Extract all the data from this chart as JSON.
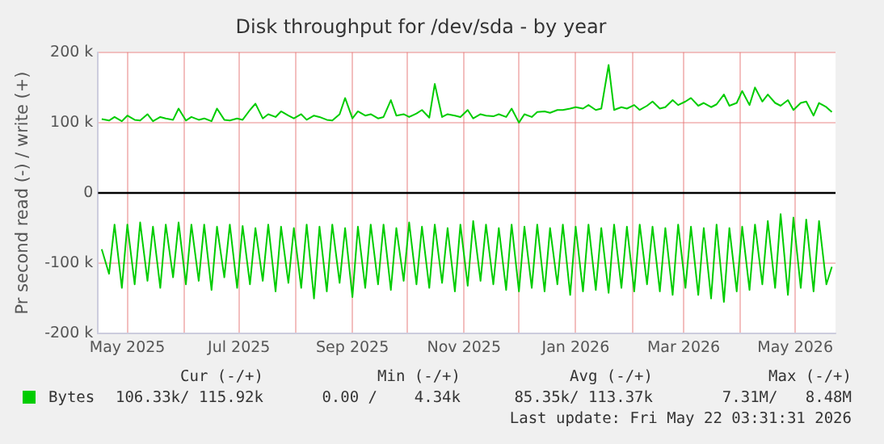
{
  "chart_data": {
    "type": "line",
    "title": "Disk throughput for /dev/sda - by year",
    "ylabel": "Pr second read (-) / write (+)",
    "x": [
      "2025-04-17",
      "2025-04-21",
      "2025-04-24",
      "2025-04-28",
      "2025-05-01",
      "2025-05-05",
      "2025-05-08",
      "2025-05-12",
      "2025-05-15",
      "2025-05-19",
      "2025-05-22",
      "2025-05-26",
      "2025-05-29",
      "2025-06-02",
      "2025-06-05",
      "2025-06-09",
      "2025-06-12",
      "2025-06-16",
      "2025-06-19",
      "2025-06-23",
      "2025-06-26",
      "2025-06-30",
      "2025-07-03",
      "2025-07-07",
      "2025-07-10",
      "2025-07-14",
      "2025-07-17",
      "2025-07-21",
      "2025-07-24",
      "2025-07-28",
      "2025-07-31",
      "2025-08-04",
      "2025-08-07",
      "2025-08-11",
      "2025-08-14",
      "2025-08-18",
      "2025-08-21",
      "2025-08-25",
      "2025-08-28",
      "2025-09-01",
      "2025-09-04",
      "2025-09-08",
      "2025-09-11",
      "2025-09-15",
      "2025-09-18",
      "2025-09-22",
      "2025-09-25",
      "2025-09-29",
      "2025-10-02",
      "2025-10-06",
      "2025-10-09",
      "2025-10-13",
      "2025-10-16",
      "2025-10-20",
      "2025-10-23",
      "2025-10-27",
      "2025-10-30",
      "2025-11-03",
      "2025-11-06",
      "2025-11-10",
      "2025-11-13",
      "2025-11-17",
      "2025-11-20",
      "2025-11-24",
      "2025-11-27",
      "2025-12-01",
      "2025-12-04",
      "2025-12-08",
      "2025-12-11",
      "2025-12-15",
      "2025-12-18",
      "2025-12-22",
      "2025-12-25",
      "2025-12-29",
      "2026-01-01",
      "2026-01-05",
      "2026-01-08",
      "2026-01-12",
      "2026-01-15",
      "2026-01-19",
      "2026-01-22",
      "2026-01-26",
      "2026-01-29",
      "2026-02-02",
      "2026-02-05",
      "2026-02-09",
      "2026-02-12",
      "2026-02-16",
      "2026-02-19",
      "2026-02-23",
      "2026-02-26",
      "2026-03-02",
      "2026-03-05",
      "2026-03-09",
      "2026-03-12",
      "2026-03-16",
      "2026-03-19",
      "2026-03-23",
      "2026-03-26",
      "2026-03-30",
      "2026-04-02",
      "2026-04-06",
      "2026-04-09",
      "2026-04-13",
      "2026-04-16",
      "2026-04-20",
      "2026-04-23",
      "2026-04-27",
      "2026-04-30",
      "2026-05-04",
      "2026-05-07",
      "2026-05-11",
      "2026-05-14",
      "2026-05-18",
      "2026-05-21"
    ],
    "series": [
      {
        "color": "#00cc00",
        "values": [
          -80000,
          -115000,
          -45000,
          -135000,
          -45000,
          -130000,
          -42000,
          -125000,
          -48000,
          -135000,
          -45000,
          -120000,
          -42000,
          -130000,
          -45000,
          -125000,
          -45000,
          -138000,
          -48000,
          -120000,
          -45000,
          -135000,
          -47000,
          -130000,
          -50000,
          -125000,
          -45000,
          -140000,
          -48000,
          -128000,
          -50000,
          -135000,
          -45000,
          -150000,
          -48000,
          -140000,
          -45000,
          -128000,
          -50000,
          -148000,
          -48000,
          -135000,
          -45000,
          -130000,
          -45000,
          -138000,
          -50000,
          -125000,
          -42000,
          -130000,
          -48000,
          -135000,
          -45000,
          -128000,
          -50000,
          -140000,
          -45000,
          -132000,
          -40000,
          -125000,
          -45000,
          -130000,
          -50000,
          -138000,
          -45000,
          -140000,
          -48000,
          -135000,
          -45000,
          -140000,
          -50000,
          -130000,
          -45000,
          -145000,
          -48000,
          -140000,
          -45000,
          -138000,
          -50000,
          -142000,
          -45000,
          -135000,
          -48000,
          -140000,
          -45000,
          -130000,
          -48000,
          -140000,
          -50000,
          -145000,
          -45000,
          -135000,
          -48000,
          -145000,
          -50000,
          -150000,
          -45000,
          -155000,
          -50000,
          -140000,
          -48000,
          -138000,
          -45000,
          -130000,
          -40000,
          -135000,
          -30000,
          -145000,
          -35000,
          -135000,
          -38000,
          -140000,
          -40000,
          -130000,
          -105000
        ]
      },
      {
        "name": "Bytes",
        "color": "#00cc00",
        "values": [
          105000,
          103000,
          108000,
          102000,
          110000,
          104000,
          103000,
          112000,
          102000,
          108000,
          106000,
          104000,
          120000,
          103000,
          108000,
          104000,
          106000,
          102000,
          120000,
          104000,
          103000,
          106000,
          104000,
          118000,
          127000,
          106000,
          112000,
          108000,
          116000,
          110000,
          106000,
          112000,
          104000,
          110000,
          108000,
          104000,
          103000,
          112000,
          135000,
          106000,
          116000,
          110000,
          112000,
          106000,
          108000,
          132000,
          110000,
          112000,
          108000,
          113000,
          118000,
          107000,
          155000,
          108000,
          112000,
          110000,
          108000,
          118000,
          106000,
          112000,
          110000,
          109000,
          112000,
          108000,
          120000,
          100000,
          112000,
          108000,
          115000,
          116000,
          114000,
          118000,
          118000,
          120000,
          122000,
          120000,
          125000,
          118000,
          120000,
          182000,
          118000,
          122000,
          120000,
          125000,
          118000,
          124000,
          130000,
          120000,
          122000,
          132000,
          125000,
          130000,
          135000,
          124000,
          128000,
          122000,
          126000,
          140000,
          124000,
          128000,
          145000,
          125000,
          150000,
          130000,
          140000,
          128000,
          124000,
          132000,
          118000,
          128000,
          130000,
          110000,
          128000,
          122000,
          115000
        ]
      }
    ],
    "xlim": [
      "2025-04-15",
      "2026-05-23"
    ],
    "xticks": [
      {
        "value": "2025-05-01",
        "label": "May 2025"
      },
      {
        "value": "2025-06-01",
        "label": null
      },
      {
        "value": "2025-07-01",
        "label": "Jul 2025"
      },
      {
        "value": "2025-08-01",
        "label": null
      },
      {
        "value": "2025-09-01",
        "label": "Sep 2025"
      },
      {
        "value": "2025-10-01",
        "label": null
      },
      {
        "value": "2025-11-01",
        "label": "Nov 2025"
      },
      {
        "value": "2025-12-01",
        "label": null
      },
      {
        "value": "2026-01-01",
        "label": "Jan 2026"
      },
      {
        "value": "2026-02-01",
        "label": null
      },
      {
        "value": "2026-03-01",
        "label": "Mar 2026"
      },
      {
        "value": "2026-04-01",
        "label": null
      },
      {
        "value": "2026-05-01",
        "label": "May 2026"
      }
    ],
    "ylim": [
      -200000,
      200000
    ],
    "yticks": [
      {
        "value": -200000,
        "label": "-200 k"
      },
      {
        "value": -100000,
        "label": "-100 k"
      },
      0,
      {
        "value": 100000,
        "label": "100 k"
      },
      {
        "value": 200000,
        "label": "200 k"
      }
    ],
    "grid": true,
    "legend": "bottom left",
    "marker": "none",
    "line_style": "solid",
    "ref_lines": [
      {
        "axis": "y",
        "value": 0,
        "color": "#000000"
      }
    ],
    "annotations": [
      "Cur (-/+)",
      "Min (-/+)",
      "Avg (-/+)",
      "Max (-/+)",
      "106.33k/ 115.92k",
      "0.00 /    4.34k",
      "85.35k/ 113.37k",
      "7.31M/   8.48M",
      "Last update: Fri May 22 03:31:31 2026"
    ]
  }
}
